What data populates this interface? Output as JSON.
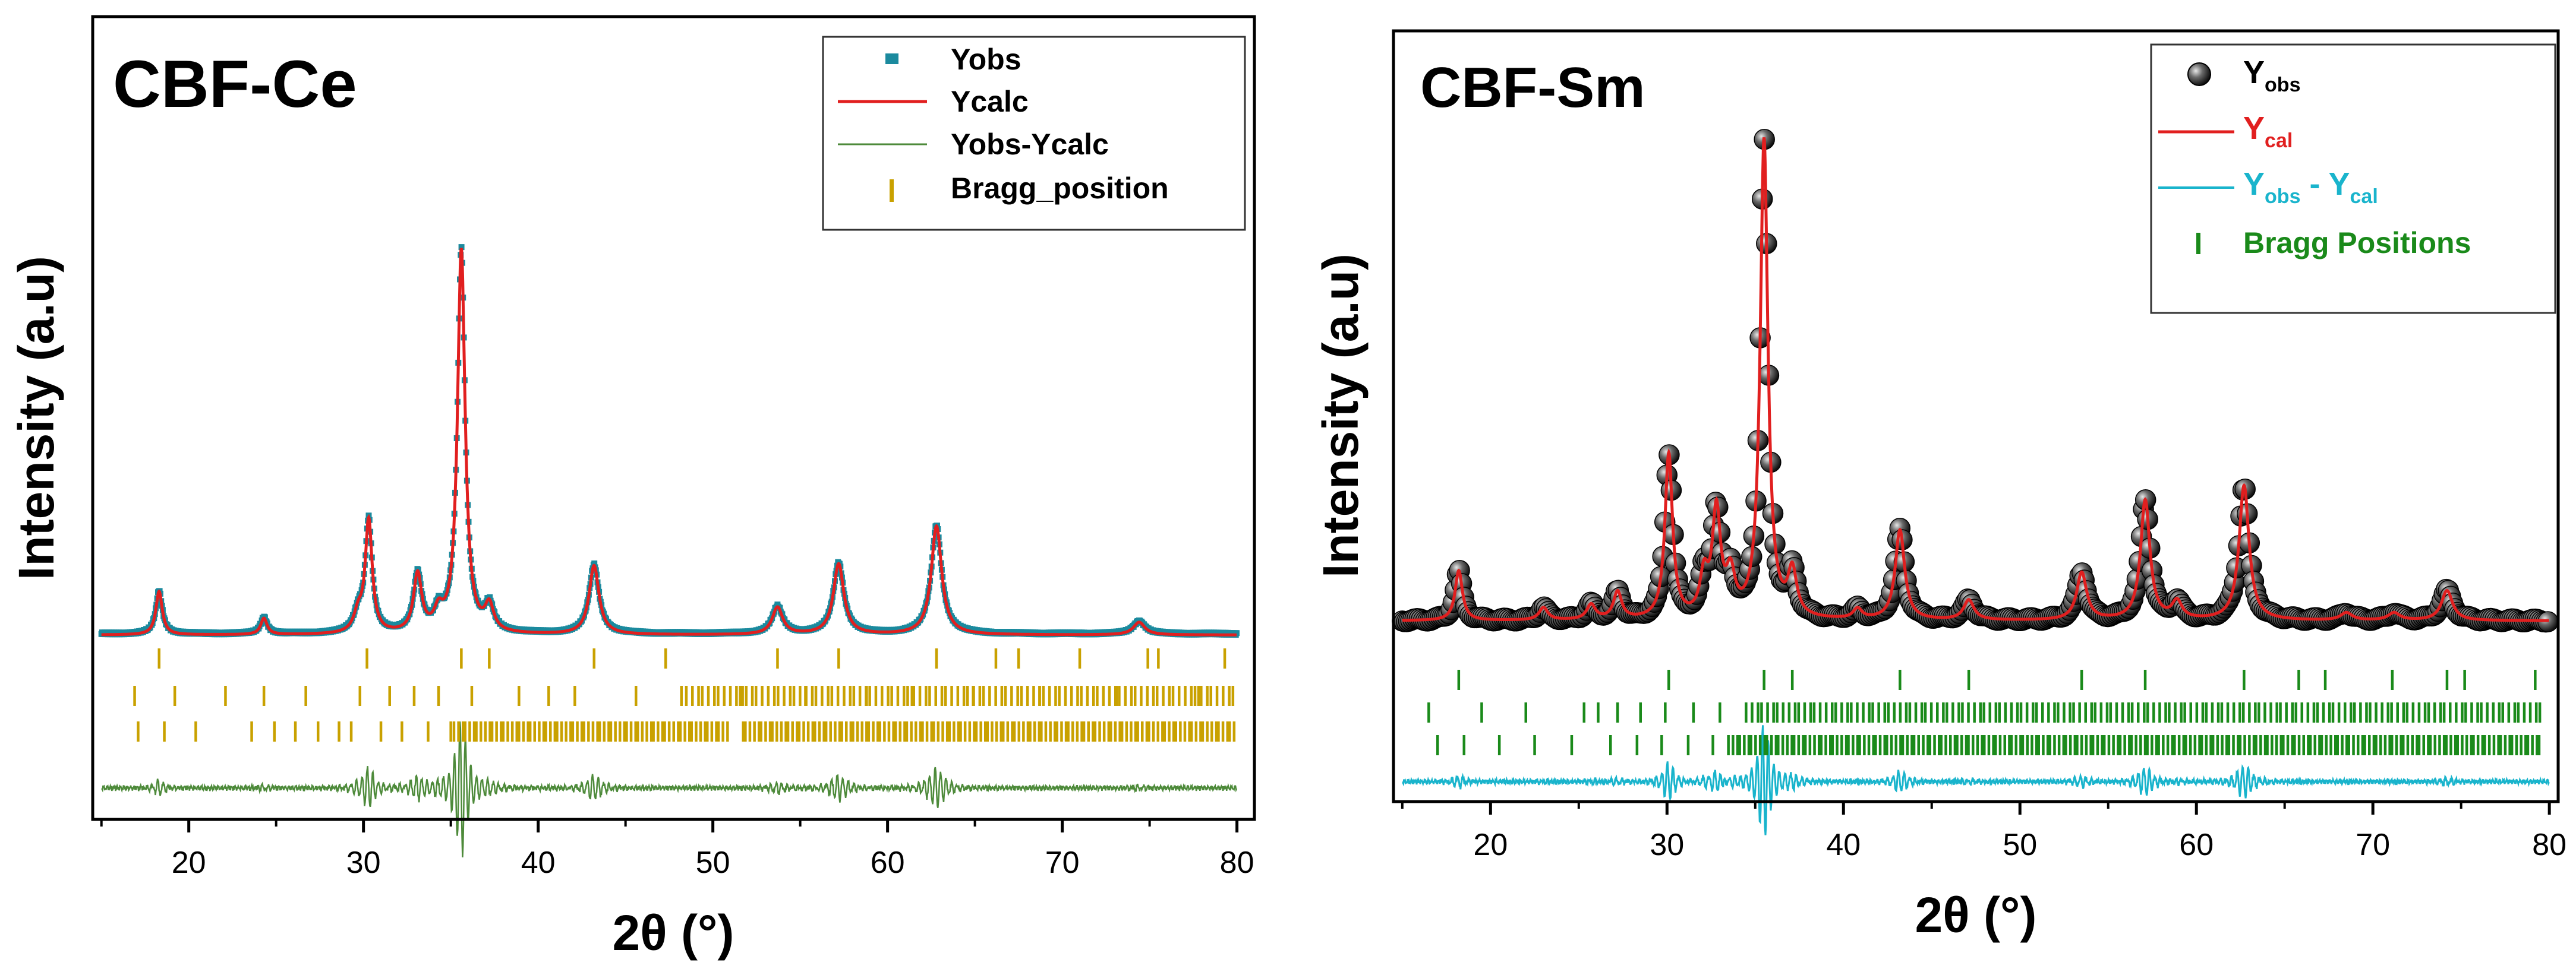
{
  "chart_data": [
    {
      "panel": "left",
      "type": "line",
      "title": "CBF-Ce",
      "xlabel": "2θ (°)",
      "ylabel": "Intensity (a.u)",
      "xlim": [
        14.5,
        81
      ],
      "xticks": [
        20,
        30,
        40,
        50,
        60,
        70,
        80
      ],
      "yticks_shown": false,
      "legend_position": "top-right",
      "series": [
        {
          "name": "Yobs",
          "marker": "square",
          "color": "#1b8a9e"
        },
        {
          "name": "Ycalc",
          "line": "solid",
          "color": "#e11f1f"
        },
        {
          "name": "Yobs-Ycalc",
          "line": "solid",
          "color": "#4d8a3a"
        },
        {
          "name": "Bragg_position",
          "marker": "tick",
          "color": "#c9a100"
        }
      ],
      "background": 0.5,
      "peaks": [
        {
          "x": 18.3,
          "h": 1.2,
          "w": 0.22
        },
        {
          "x": 24.3,
          "h": 0.45,
          "w": 0.22
        },
        {
          "x": 29.7,
          "h": 0.5,
          "w": 0.3
        },
        {
          "x": 30.3,
          "h": 3.1,
          "w": 0.24
        },
        {
          "x": 33.1,
          "h": 1.6,
          "w": 0.28
        },
        {
          "x": 34.3,
          "h": 0.5,
          "w": 0.3
        },
        {
          "x": 35.6,
          "h": 10.6,
          "w": 0.26
        },
        {
          "x": 37.2,
          "h": 0.7,
          "w": 0.3
        },
        {
          "x": 43.2,
          "h": 1.9,
          "w": 0.34
        },
        {
          "x": 53.7,
          "h": 0.75,
          "w": 0.36
        },
        {
          "x": 57.2,
          "h": 1.95,
          "w": 0.36
        },
        {
          "x": 62.8,
          "h": 3.0,
          "w": 0.36
        },
        {
          "x": 74.4,
          "h": 0.35,
          "w": 0.4
        }
      ],
      "bragg_rows": [
        {
          "x": [
            18.3,
            30.2,
            35.6,
            37.2,
            43.2,
            47.3,
            53.7,
            57.2,
            62.8,
            66.2,
            67.5,
            71.0,
            74.9,
            75.5,
            79.3
          ]
        },
        {
          "x": [
            16.9,
            19.2,
            22.1,
            24.3,
            26.7,
            29.8,
            31.5,
            32.9,
            34.3,
            36.2,
            38.9,
            40.6,
            42.1,
            45.6,
            48.2,
            51.7,
            55.3,
            58.8,
            61.4,
            64.9,
            68.7,
            73.1,
            77.8
          ],
          "dense_start": 48.5,
          "dense_step": 0.31
        },
        {
          "x": [
            17.1,
            18.6,
            20.4,
            23.6,
            24.9,
            26.1,
            27.4,
            28.6,
            29.3,
            31.0,
            32.2,
            33.7,
            35.0
          ],
          "dense_start": 35.2,
          "dense_step": 0.22,
          "gap": [
            50.9,
            51.6
          ]
        }
      ]
    },
    {
      "panel": "right",
      "type": "line",
      "title": "CBF-Sm",
      "xlabel": "2θ (°)",
      "ylabel": "Intensity (a.u)",
      "xlim": [
        14.5,
        80.5
      ],
      "xticks": [
        20,
        30,
        40,
        50,
        60,
        70,
        80
      ],
      "yticks_shown": false,
      "legend_position": "top-right",
      "series": [
        {
          "name": "Yobs",
          "name_base": "Y",
          "name_sub": "obs",
          "marker": "sphere",
          "color": "#222222"
        },
        {
          "name": "Ycal",
          "name_base": "Y",
          "name_sub": "cal",
          "line": "solid",
          "color": "#e11f1f"
        },
        {
          "name": "Yobs - Ycal",
          "name_base": "Y",
          "name_sub": "obs",
          "name_mid": " - Y",
          "name_sub2": "cal",
          "line": "solid",
          "color": "#19b4cc"
        },
        {
          "name": "Bragg Positions",
          "marker": "tick",
          "color": "#1a8a1a"
        }
      ],
      "background": 0.35,
      "peaks": [
        {
          "x": 18.2,
          "h": 1.0,
          "w": 0.25
        },
        {
          "x": 23.0,
          "h": 0.25,
          "w": 0.3
        },
        {
          "x": 25.7,
          "h": 0.3,
          "w": 0.3
        },
        {
          "x": 27.2,
          "h": 0.55,
          "w": 0.28
        },
        {
          "x": 30.1,
          "h": 3.3,
          "w": 0.26
        },
        {
          "x": 32.1,
          "h": 0.8,
          "w": 0.28
        },
        {
          "x": 32.8,
          "h": 2.1,
          "w": 0.28
        },
        {
          "x": 33.6,
          "h": 0.8,
          "w": 0.3
        },
        {
          "x": 35.5,
          "h": 9.6,
          "w": 0.26
        },
        {
          "x": 37.1,
          "h": 0.9,
          "w": 0.3
        },
        {
          "x": 40.8,
          "h": 0.2,
          "w": 0.3
        },
        {
          "x": 43.2,
          "h": 1.8,
          "w": 0.32
        },
        {
          "x": 47.1,
          "h": 0.4,
          "w": 0.35
        },
        {
          "x": 53.5,
          "h": 0.95,
          "w": 0.34
        },
        {
          "x": 57.1,
          "h": 2.4,
          "w": 0.32
        },
        {
          "x": 58.9,
          "h": 0.35,
          "w": 0.34
        },
        {
          "x": 62.7,
          "h": 2.7,
          "w": 0.34
        },
        {
          "x": 68.5,
          "h": 0.15,
          "w": 0.4
        },
        {
          "x": 71.2,
          "h": 0.15,
          "w": 0.4
        },
        {
          "x": 74.2,
          "h": 0.6,
          "w": 0.38
        }
      ],
      "bragg_rows": [
        {
          "x": [
            18.2,
            30.1,
            35.5,
            37.1,
            43.2,
            47.1,
            53.5,
            57.1,
            62.7,
            65.8,
            67.3,
            71.1,
            74.2,
            75.2,
            79.2
          ]
        },
        {
          "x": [
            16.5,
            19.5,
            22.0,
            25.3,
            26.1,
            27.2,
            28.5,
            29.9,
            31.5,
            33.0
          ],
          "dense_start": 34.5,
          "dense_step": 0.3
        },
        {
          "x": [
            17.0,
            18.5,
            20.5,
            22.5,
            24.6,
            26.8,
            28.3,
            29.7,
            31.2,
            32.6
          ],
          "dense_start": 33.5,
          "dense_step": 0.22
        }
      ]
    }
  ]
}
